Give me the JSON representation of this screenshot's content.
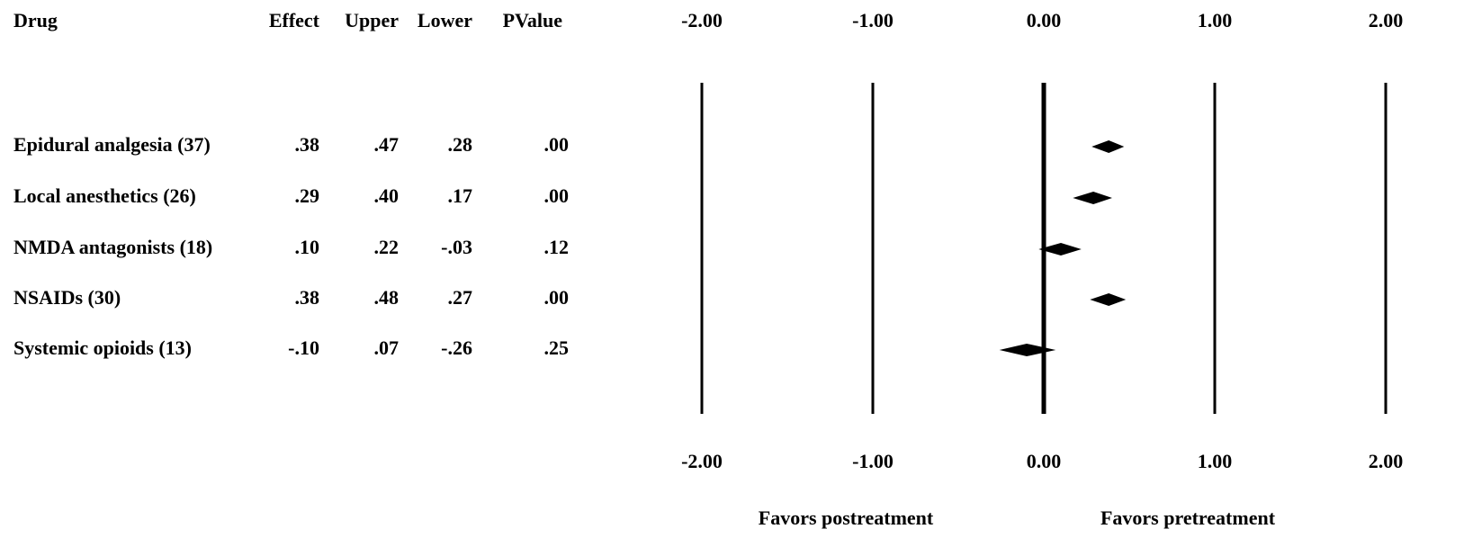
{
  "chart_data": {
    "type": "forest",
    "columns": [
      "Drug",
      "Effect",
      "Upper",
      "Lower",
      "PValue"
    ],
    "categories": [
      "Epidural analgesia (37)",
      "Local anesthetics (26)",
      "NMDA antagonists (18)",
      "NSAIDs (30)",
      "Systemic opioids (13)"
    ],
    "values": [
      0.38,
      0.29,
      0.1,
      0.38,
      -0.1
    ],
    "value_labels": [
      ".38",
      ".29",
      ".10",
      ".38",
      "-.10"
    ],
    "upper": [
      0.47,
      0.4,
      0.22,
      0.48,
      0.07
    ],
    "upper_labels": [
      ".47",
      ".40",
      ".22",
      ".48",
      ".07"
    ],
    "lower": [
      0.28,
      0.17,
      -0.03,
      0.27,
      -0.26
    ],
    "lower_labels": [
      ".28",
      ".17",
      "-.03",
      ".27",
      "-.26"
    ],
    "pvalues": [
      ".00",
      ".00",
      ".12",
      ".00",
      ".25"
    ],
    "xlim": [
      -2,
      2
    ],
    "xticks": [
      {
        "value": -2,
        "label": "-2.00"
      },
      {
        "value": -1,
        "label": "-1.00"
      },
      {
        "value": 0,
        "label": "0.00"
      },
      {
        "value": 1,
        "label": "1.00"
      },
      {
        "value": 2,
        "label": "2.00"
      }
    ],
    "color": "#000000",
    "annotations": [
      "Favors postreatment",
      "Favors pretreatment"
    ]
  }
}
